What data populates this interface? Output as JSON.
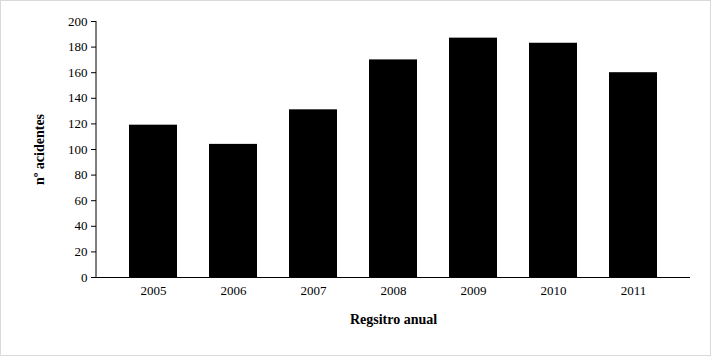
{
  "chart_data": {
    "type": "bar",
    "categories": [
      "2005",
      "2006",
      "2007",
      "2008",
      "2009",
      "2010",
      "2011"
    ],
    "values": [
      119,
      104,
      131,
      170,
      187,
      183,
      160
    ],
    "color": "#000000",
    "x_label": "Regsitro anual",
    "y_label": "nº acidentes",
    "ylim": [
      0,
      200
    ],
    "yticks": [
      0,
      20,
      40,
      60,
      80,
      100,
      120,
      140,
      160,
      180,
      200
    ],
    "grid": false
  }
}
